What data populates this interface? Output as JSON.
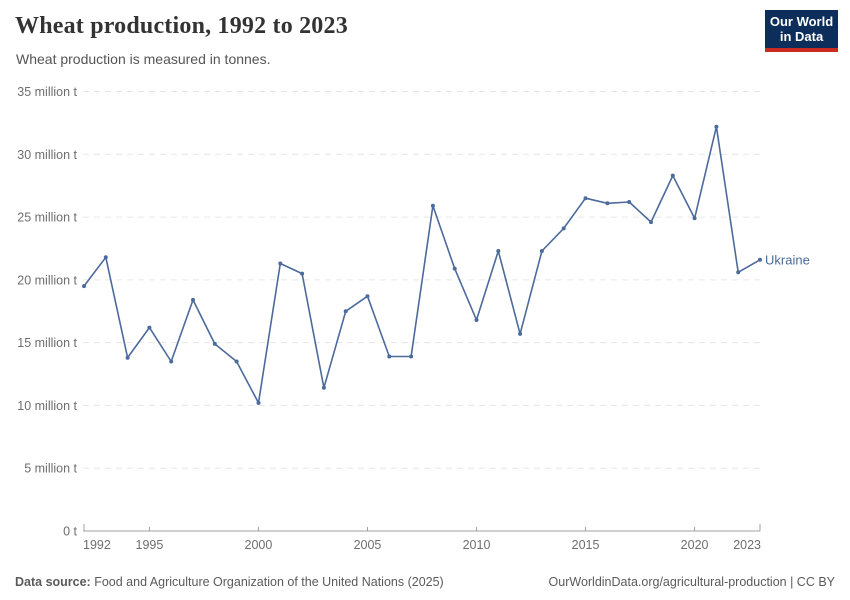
{
  "header": {
    "title": "Wheat production, 1992 to 2023",
    "subtitle": "Wheat production is measured in tonnes."
  },
  "logo": {
    "line1": "Our World",
    "line2": "in Data"
  },
  "chart_data": {
    "type": "line",
    "title": "Wheat production, 1992 to 2023",
    "subtitle": "Wheat production is measured in tonnes.",
    "unit": "million tonnes",
    "x": [
      1992,
      1993,
      1994,
      1995,
      1996,
      1997,
      1998,
      1999,
      2000,
      2001,
      2002,
      2003,
      2004,
      2005,
      2006,
      2007,
      2008,
      2009,
      2010,
      2011,
      2012,
      2013,
      2014,
      2015,
      2016,
      2017,
      2018,
      2019,
      2020,
      2021,
      2022,
      2023
    ],
    "series": [
      {
        "name": "Ukraine",
        "color": "#4C6A9C",
        "values": [
          19.5,
          21.8,
          13.8,
          16.2,
          13.5,
          18.4,
          14.9,
          13.5,
          10.2,
          21.3,
          20.5,
          11.4,
          17.5,
          18.7,
          13.9,
          13.9,
          25.9,
          20.9,
          16.8,
          22.3,
          15.7,
          22.3,
          24.1,
          26.5,
          26.1,
          26.2,
          24.6,
          28.3,
          24.9,
          32.2,
          20.6,
          21.6
        ]
      }
    ],
    "ylim": [
      0,
      35
    ],
    "grid": true,
    "legend": "end-of-line-label",
    "y_ticks": [
      {
        "value": 35,
        "label": "35 million t"
      },
      {
        "value": 30,
        "label": "30 million t"
      },
      {
        "value": 25,
        "label": "25 million t"
      },
      {
        "value": 20,
        "label": "20 million t"
      },
      {
        "value": 15,
        "label": "15 million t"
      },
      {
        "value": 10,
        "label": "10 million t"
      },
      {
        "value": 5,
        "label": "5 million t"
      },
      {
        "value": 0,
        "label": "0 t"
      }
    ],
    "x_ticks": [
      {
        "value": 1992,
        "label": "1992"
      },
      {
        "value": 1995,
        "label": "1995"
      },
      {
        "value": 2000,
        "label": "2000"
      },
      {
        "value": 2005,
        "label": "2005"
      },
      {
        "value": 2010,
        "label": "2010"
      },
      {
        "value": 2015,
        "label": "2015"
      },
      {
        "value": 2020,
        "label": "2020"
      },
      {
        "value": 2023,
        "label": "2023"
      }
    ]
  },
  "colors": {
    "line": "#4C6A9C",
    "grid": "#e6e6e6",
    "axis": "#a0a0a0",
    "tick_text": "#6e6e6e",
    "logo_bg": "#0d2e5a",
    "logo_accent": "#cc2b23"
  },
  "footer": {
    "source_label": "Data source:",
    "source_text": " Food and Agriculture Organization of the United Nations (2025)",
    "link_text": "OurWorldinData.org/agricultural-production | CC BY"
  }
}
